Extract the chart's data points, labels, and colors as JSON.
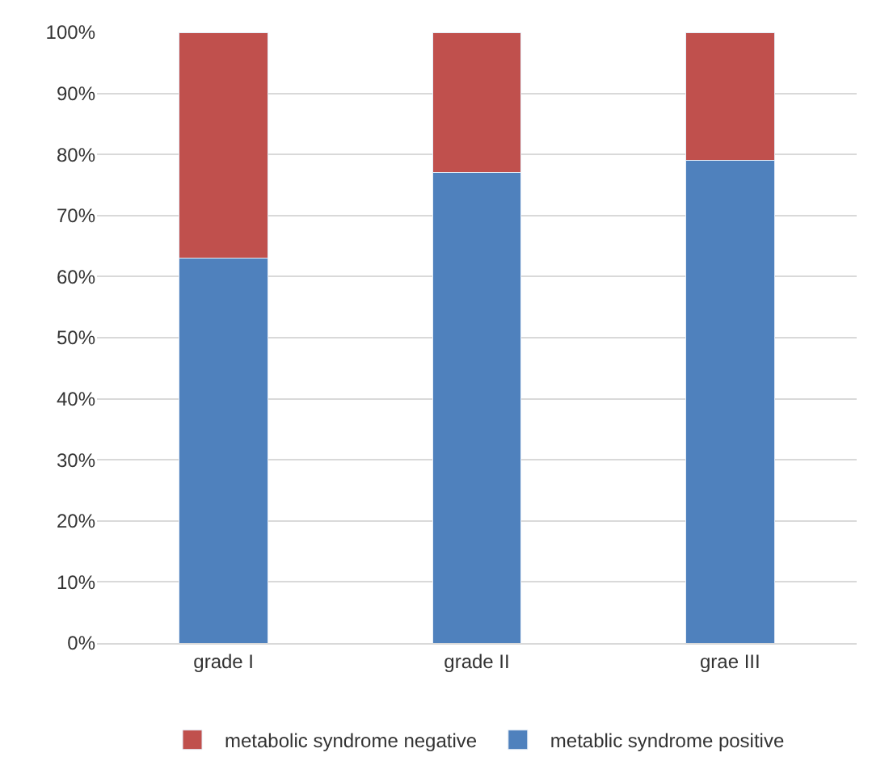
{
  "chart_data": {
    "type": "bar",
    "stacked": true,
    "categories": [
      "grade I",
      "grade II",
      "grae III"
    ],
    "series": [
      {
        "name": "metablic syndrome positive",
        "color": "#4f81bd",
        "values": [
          63,
          77,
          79
        ]
      },
      {
        "name": "metabolic syndrome negative",
        "color": "#c0504d",
        "values": [
          37,
          23,
          21
        ]
      }
    ],
    "ylim": [
      0,
      100
    ],
    "yticks": [
      {
        "value": 0,
        "label": "0%"
      },
      {
        "value": 10,
        "label": "10%"
      },
      {
        "value": 20,
        "label": "20%"
      },
      {
        "value": 30,
        "label": "30%"
      },
      {
        "value": 40,
        "label": "40%"
      },
      {
        "value": 50,
        "label": "50%"
      },
      {
        "value": 60,
        "label": "60%"
      },
      {
        "value": 70,
        "label": "70%"
      },
      {
        "value": 80,
        "label": "80%"
      },
      {
        "value": 90,
        "label": "90%"
      },
      {
        "value": 100,
        "label": "100%"
      }
    ],
    "grid": "y",
    "legend": "bottom"
  }
}
